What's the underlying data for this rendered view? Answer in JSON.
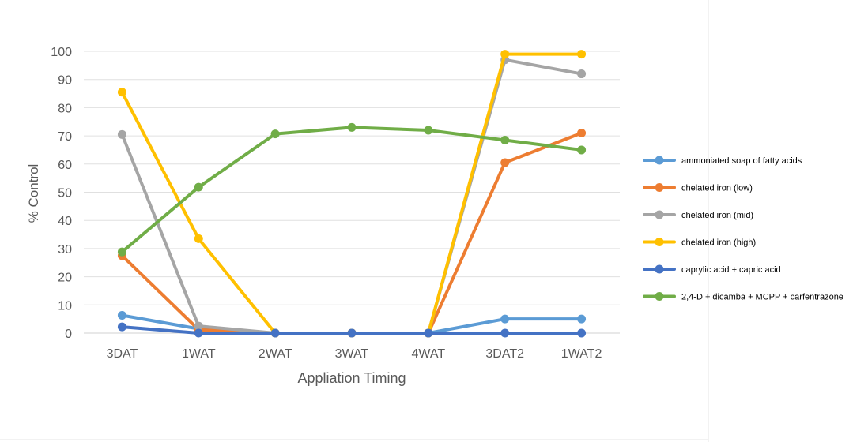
{
  "chart_data": {
    "type": "line",
    "title": "",
    "xlabel": "Appliation Timing",
    "ylabel": "% Control",
    "ylim": [
      0,
      100
    ],
    "yticks": [
      0,
      10,
      20,
      30,
      40,
      50,
      60,
      70,
      80,
      90,
      100
    ],
    "grid": true,
    "legend_position": "right",
    "categories": [
      "3DAT",
      "1WAT",
      "2WAT",
      "3WAT",
      "4WAT",
      "3DAT2",
      "1WAT2"
    ],
    "series": [
      {
        "name": "ammoniated soap of fatty acids",
        "color": "#5B9BD5",
        "values": [
          6.3,
          1.5,
          0,
          0,
          0,
          5,
          5
        ]
      },
      {
        "name": "chelated iron (low)",
        "color": "#ED7D31",
        "values": [
          27.5,
          1.2,
          0,
          0,
          0,
          60.5,
          71
        ]
      },
      {
        "name": "chelated iron (mid)",
        "color": "#A5A5A5",
        "values": [
          70.5,
          2.5,
          0,
          0,
          0,
          97,
          92
        ]
      },
      {
        "name": "chelated iron (high)",
        "color": "#FFC000",
        "values": [
          85.5,
          33.5,
          0,
          0,
          0,
          99,
          99
        ]
      },
      {
        "name": "caprylic acid + capric acid",
        "color": "#4472C4",
        "values": [
          2.2,
          0,
          0,
          0,
          0,
          0,
          0
        ]
      },
      {
        "name": "2,4-D + dicamba + MCPP + carfentrazone",
        "color": "#70AD47",
        "values": [
          28.8,
          51.8,
          70.7,
          73,
          72,
          68.5,
          65
        ]
      }
    ]
  }
}
